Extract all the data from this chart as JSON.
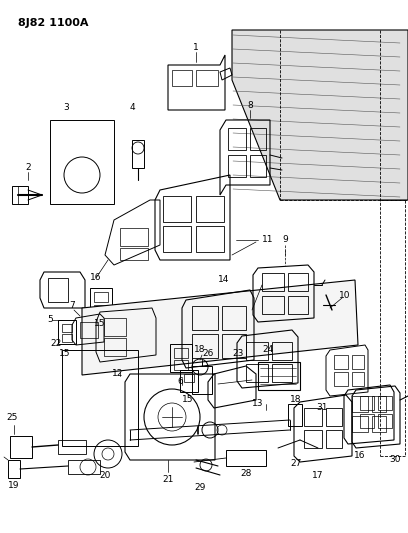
{
  "title": "8J82 1100A",
  "bg_color": "#ffffff",
  "lc": "#000000",
  "fig_width": 4.08,
  "fig_height": 5.33,
  "dpi": 100,
  "xlim": [
    0,
    408
  ],
  "ylim": [
    0,
    533
  ]
}
